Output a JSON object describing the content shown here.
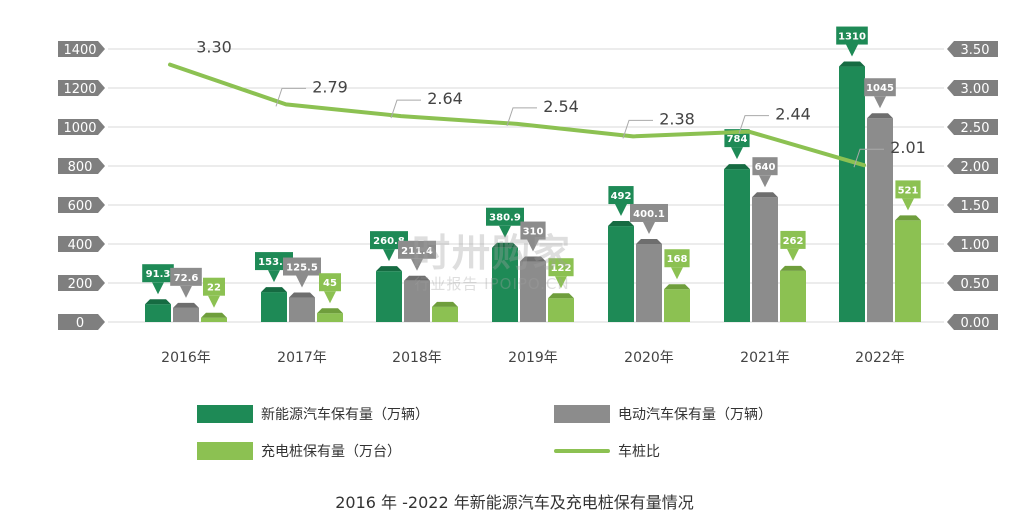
{
  "colors": {
    "nev": "#1e8a56",
    "ev": "#8c8c8c",
    "pile": "#8cc152",
    "ratio": "#8cc152",
    "axis_label_bg": "#7f7f7f",
    "grid": "#d9d9d9"
  },
  "chart_data": {
    "type": "bar",
    "categories": [
      "2016年",
      "2017年",
      "2018年",
      "2019年",
      "2020年",
      "2021年",
      "2022年"
    ],
    "series": [
      {
        "name": "新能源汽车保有量（万辆）",
        "type": "bar",
        "values": [
          91.3,
          153.4,
          260.8,
          380.9,
          492,
          784,
          1310
        ],
        "labels": [
          "91.3",
          "153.4",
          "260.8",
          "380.9",
          "492",
          "784",
          "1310"
        ]
      },
      {
        "name": "电动汽车保有量（万辆）",
        "type": "bar",
        "values": [
          72.6,
          125.5,
          211.4,
          310.0,
          400.1,
          640,
          1045
        ],
        "labels": [
          "72.6",
          "125.5",
          "211.4",
          "310",
          "400.1",
          "640",
          "1045"
        ]
      },
      {
        "name": "充电桩保有量（万台）",
        "type": "bar",
        "values": [
          22,
          45,
          77.7,
          122,
          168,
          262,
          521
        ],
        "labels": [
          "22",
          "45",
          "",
          "122",
          "168",
          "262",
          "521"
        ]
      },
      {
        "name": "车桩比",
        "type": "line",
        "axis": "right",
        "values": [
          3.3,
          2.79,
          2.64,
          2.54,
          2.38,
          2.44,
          2.01
        ],
        "labels": [
          "3.30",
          "2.79",
          "2.64",
          "2.54",
          "2.38",
          "2.44",
          "2.01"
        ]
      }
    ],
    "y_left": {
      "min": 0,
      "max": 1400,
      "ticks": [
        "0",
        "200",
        "400",
        "600",
        "800",
        "1000",
        "1200",
        "1400"
      ]
    },
    "y_right": {
      "min": 0,
      "max": 3.5,
      "ticks": [
        "0.00",
        "0.50",
        "1.00",
        "1.50",
        "2.00",
        "2.50",
        "3.00",
        "3.50"
      ]
    },
    "grid": true,
    "legend_position": "bottom",
    "title": "2016 年 -2022 年新能源汽车及充电桩保有量情况"
  },
  "legend": {
    "nev": "新能源汽车保有量（万辆）",
    "ev": "电动汽车保有量（万辆）",
    "pile": "充电桩保有量（万台）",
    "ratio": "车桩比"
  },
  "caption": "2016 年 -2022 年新能源汽车及充电桩保有量情况",
  "watermark": {
    "main": "时卅购家",
    "sub": "行业报告 IPOIPO.CN"
  }
}
